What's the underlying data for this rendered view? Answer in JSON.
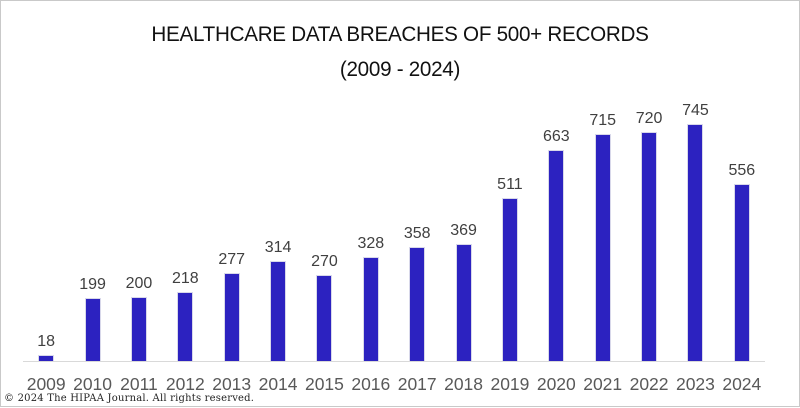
{
  "page": {
    "copyright": "© 2024 The HIPAA Journal. All rights reserved."
  },
  "chart_data": {
    "type": "bar",
    "title": "HEALTHCARE DATA BREACHES OF 500+ RECORDS",
    "subtitle": "(2009 - 2024)",
    "categories": [
      "2009",
      "2010",
      "2011",
      "2012",
      "2013",
      "2014",
      "2015",
      "2016",
      "2017",
      "2018",
      "2019",
      "2020",
      "2021",
      "2022",
      "2023",
      "2024"
    ],
    "values": [
      18,
      199,
      200,
      218,
      277,
      314,
      270,
      328,
      358,
      369,
      511,
      663,
      715,
      720,
      745,
      556
    ],
    "xlabel": "",
    "ylabel": "",
    "ylim": [
      0,
      745
    ],
    "grid": false,
    "legend": "none",
    "data_labels": true,
    "bar_color": "#2c22c0",
    "bar_border_color": "#d8d8ea",
    "axis_line_color": "#d9d9d9",
    "value_label_color": "#404040",
    "tick_label_color": "#595959"
  }
}
